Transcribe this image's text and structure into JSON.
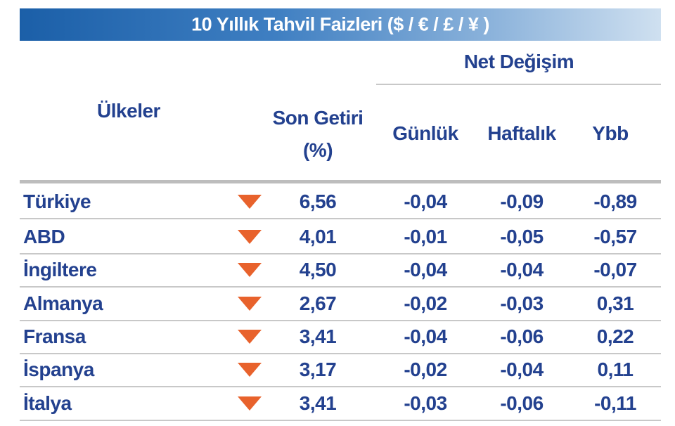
{
  "title": "10 Yıllık Tahvil Faizleri ($ / € / £ / ¥ )",
  "header": {
    "country": "Ülkeler",
    "yield_line1": "Son Getiri",
    "yield_line2": "(%)",
    "net_change": "Net Değişim",
    "daily": "Günlük",
    "weekly": "Haftalık",
    "ytd": "Ybb"
  },
  "table": {
    "rows": [
      [
        "Türkiye",
        "6,56",
        "-0,04",
        "-0,09",
        "-0,89"
      ],
      [
        "ABD",
        "4,01",
        "-0,01",
        "-0,05",
        "-0,57"
      ],
      [
        "İngiltere",
        "4,50",
        "-0,04",
        "-0,04",
        "-0,07"
      ],
      [
        "Almanya",
        "2,67",
        "-0,02",
        "-0,03",
        "0,31"
      ],
      [
        "Fransa",
        "3,41",
        "-0,04",
        "-0,06",
        "0,22"
      ],
      [
        "İspanya",
        "3,17",
        "-0,02",
        "-0,04",
        "0,11"
      ],
      [
        "İtalya",
        "3,41",
        "-0,03",
        "-0,06",
        "-0,11"
      ]
    ]
  }
}
